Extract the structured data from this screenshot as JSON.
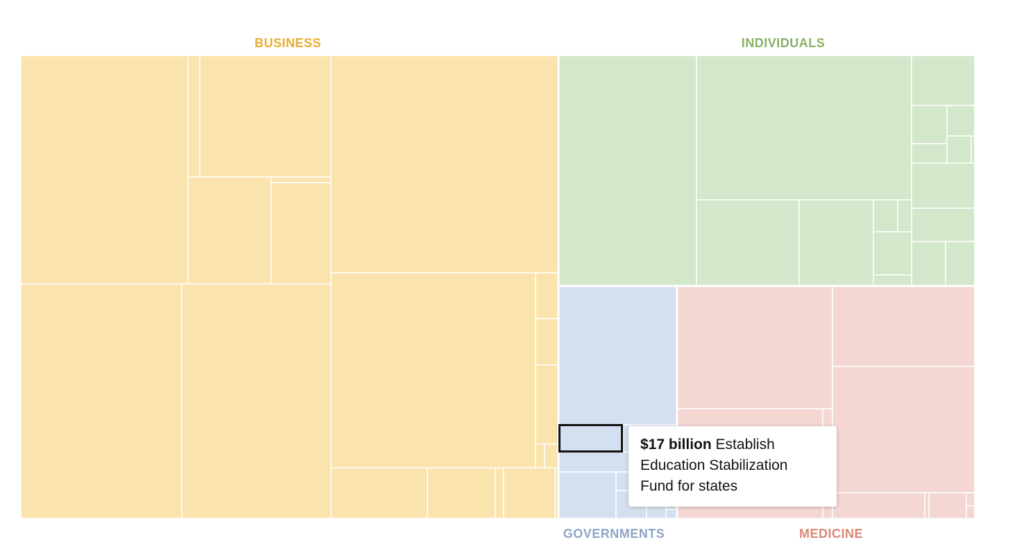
{
  "chart_data": {
    "type": "treemap",
    "categories": [
      {
        "name": "BUSINESS",
        "color": "#fae3ac",
        "label_color": "#e8ad2e"
      },
      {
        "name": "INDIVIDUALS",
        "color": "#d3e7cb",
        "label_color": "#88b065"
      },
      {
        "name": "GOVERNMENTS",
        "color": "#d4e0ef",
        "label_color": "#8ea4c6"
      },
      {
        "name": "MEDICINE",
        "color": "#f4d6d3",
        "label_color": "#dc8776"
      }
    ],
    "highlighted": {
      "category": "GOVERNMENTS",
      "value": 17,
      "unit": "billion"
    }
  },
  "tooltip": {
    "amount": "$17 billion",
    "description": "Establish Education Stabilization Fund for states"
  }
}
